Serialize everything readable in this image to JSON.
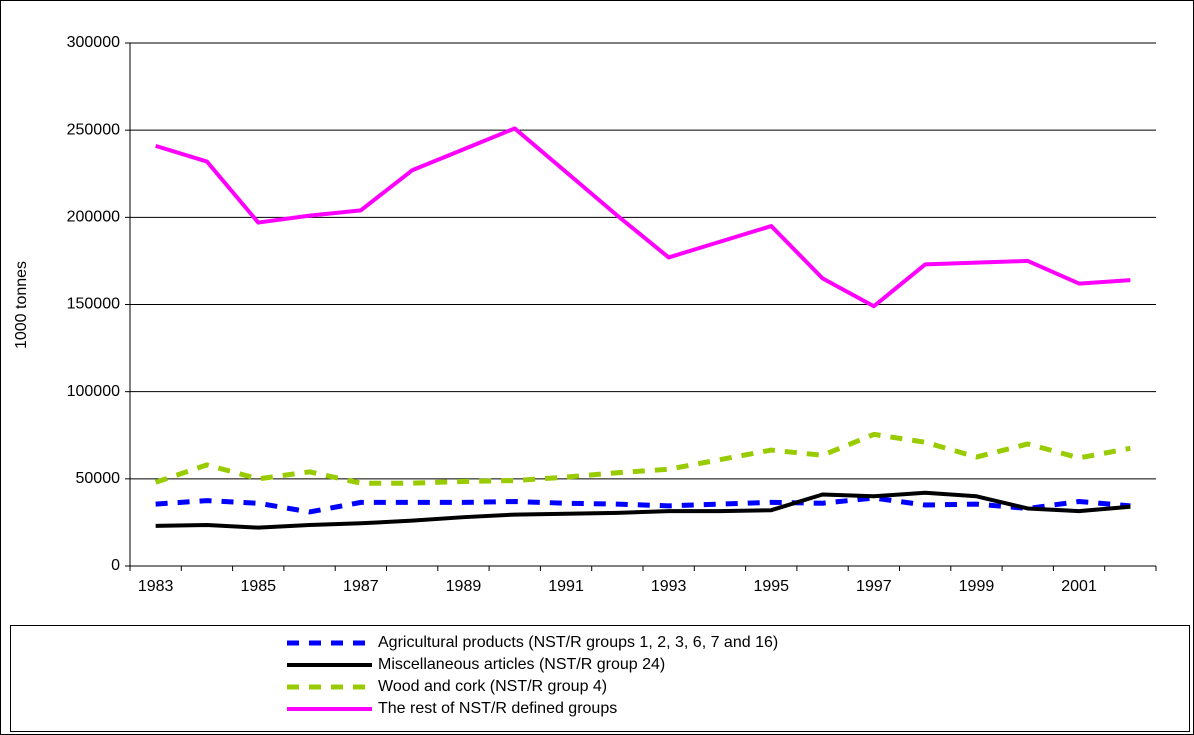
{
  "chart_data": {
    "type": "line",
    "y_label": "1000 tonnes",
    "categories": [
      "1983",
      null,
      "1985",
      null,
      "1987",
      null,
      "1989",
      null,
      "1991",
      null,
      "1993",
      null,
      "1995",
      null,
      "1997",
      null,
      "1999",
      null,
      "2001",
      null
    ],
    "ylim": [
      0,
      300000
    ],
    "yticks": [
      0,
      50000,
      100000,
      150000,
      200000,
      250000,
      300000
    ],
    "grid": true,
    "series": [
      {
        "name": "Agricultural products (NST/R groups 1, 2, 3, 6, 7 and 16)",
        "color": "#0000ff",
        "dashed": true,
        "values": [
          35500,
          37500,
          36000,
          31000,
          36500,
          36500,
          36500,
          37000,
          36000,
          35500,
          34500,
          35500,
          36500,
          36000,
          39000,
          35000,
          35500,
          33000,
          37000,
          34500
        ]
      },
      {
        "name": "Miscellaneous articles (NST/R group 24)",
        "color": "#000000",
        "dashed": false,
        "values": [
          23000,
          23500,
          22000,
          23500,
          24500,
          26000,
          28000,
          29500,
          30000,
          30500,
          31500,
          31500,
          32000,
          41000,
          40000,
          42000,
          40000,
          33000,
          31500,
          34000
        ]
      },
      {
        "name": "Wood and cork (NST/R group 4)",
        "color": "#99cc00",
        "dashed": true,
        "values": [
          48000,
          58000,
          50000,
          54000,
          47500,
          47500,
          48500,
          49000,
          51000,
          53500,
          55500,
          61000,
          66500,
          63500,
          75500,
          71000,
          62500,
          70000,
          62000,
          67500
        ]
      },
      {
        "name": "The rest of NST/R defined groups",
        "color": "#ff00ff",
        "dashed": false,
        "values": [
          241000,
          232000,
          197000,
          201000,
          204000,
          227000,
          239000,
          251000,
          226000,
          201000,
          177000,
          186000,
          195000,
          165000,
          149000,
          173000,
          174000,
          175000,
          162000,
          164000
        ]
      }
    ]
  }
}
